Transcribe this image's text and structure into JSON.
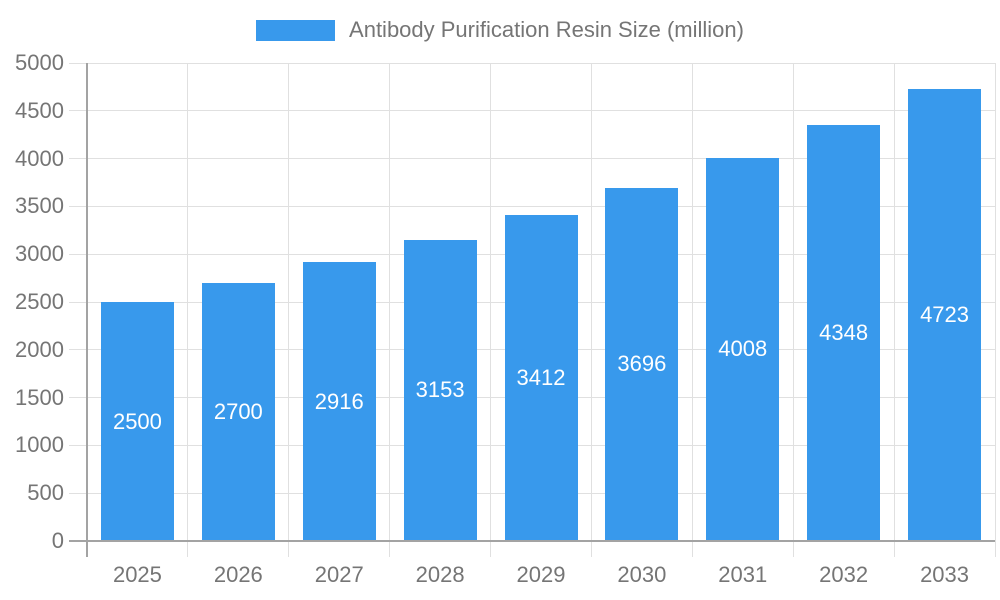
{
  "chart_data": {
    "type": "bar",
    "title": "Antibody Purification Resin Size (million)",
    "categories": [
      "2025",
      "2026",
      "2027",
      "2028",
      "2029",
      "2030",
      "2031",
      "2032",
      "2033"
    ],
    "values": [
      2500,
      2700,
      2916,
      3153,
      3412,
      3696,
      4008,
      4348,
      4723
    ],
    "bar_labels": [
      "2500",
      "2700",
      "2916",
      "3153",
      "3412",
      "3696",
      "4008",
      "4348",
      "4723"
    ],
    "xlabel": "",
    "ylabel": "",
    "ylim": [
      0,
      5000
    ],
    "ytick_step": 500,
    "yticks": [
      0,
      500,
      1000,
      1500,
      2000,
      2500,
      3000,
      3500,
      4000,
      4500,
      5000
    ],
    "grid": true,
    "legend_position": "top-center",
    "colors": {
      "bar": "#3899EC",
      "bar_label": "#FFFFFF",
      "axis_line": "#A3A3A3",
      "gridline": "#E0E0E0",
      "tick_label": "#757575",
      "legend_text": "#757575",
      "background": "#FFFFFF"
    }
  }
}
